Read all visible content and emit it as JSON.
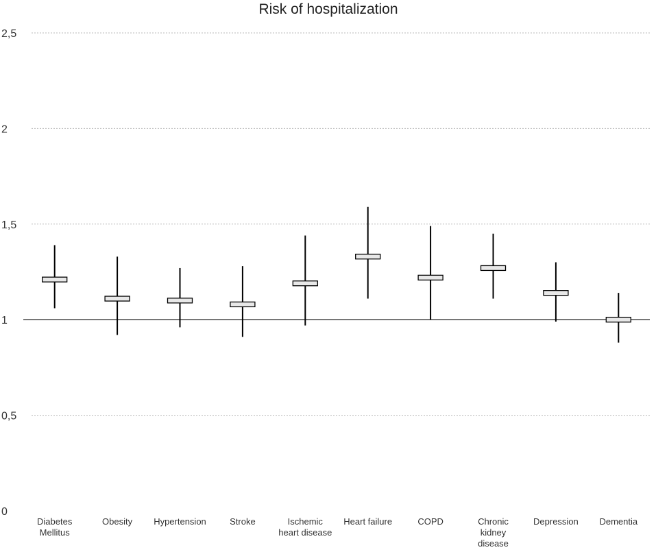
{
  "chart_data": {
    "type": "error-bar",
    "title": "Risk of hospitalization",
    "xlabel": "",
    "ylabel": "",
    "ylim": [
      0,
      2.5
    ],
    "yticks": [
      {
        "value": 0,
        "label": "0"
      },
      {
        "value": 0.5,
        "label": "0,5"
      },
      {
        "value": 1,
        "label": "1"
      },
      {
        "value": 1.5,
        "label": "1,5"
      },
      {
        "value": 2,
        "label": "2"
      },
      {
        "value": 2.5,
        "label": "2,5"
      }
    ],
    "reference_line": 1,
    "grid": "horizontal dotted",
    "categories": [
      [
        "Diabetes",
        "Mellitus"
      ],
      [
        "Obesity"
      ],
      [
        "Hypertension"
      ],
      [
        "Stroke"
      ],
      [
        "Ischemic",
        "heart disease"
      ],
      [
        "Heart failure"
      ],
      [
        "COPD"
      ],
      [
        "Chronic",
        "kidney",
        "disease"
      ],
      [
        "Depression"
      ],
      [
        "Dementia"
      ]
    ],
    "series": [
      {
        "name": "Risk of hospitalization",
        "estimate": [
          1.21,
          1.11,
          1.1,
          1.08,
          1.19,
          1.33,
          1.22,
          1.27,
          1.14,
          1.0
        ],
        "lower": [
          1.06,
          0.92,
          0.96,
          0.91,
          0.97,
          1.11,
          1.0,
          1.11,
          0.99,
          0.88
        ],
        "upper": [
          1.39,
          1.33,
          1.27,
          1.28,
          1.44,
          1.59,
          1.49,
          1.45,
          1.3,
          1.14
        ]
      }
    ]
  }
}
